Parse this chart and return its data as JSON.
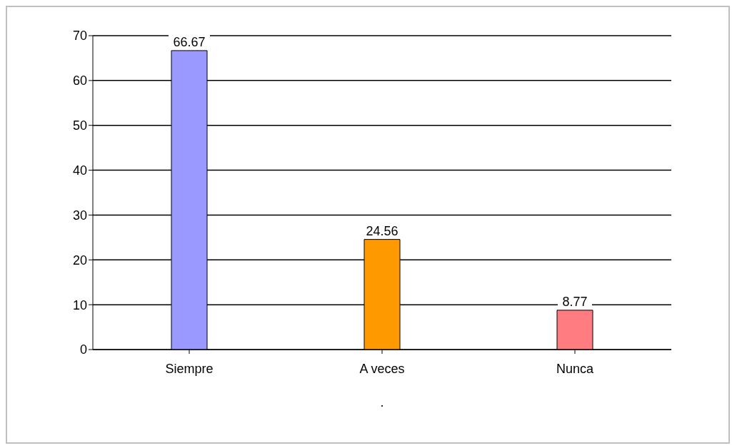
{
  "chart_data": {
    "type": "bar",
    "categories": [
      "Siempre",
      "A veces",
      "Nunca"
    ],
    "values": [
      66.67,
      24.56,
      8.77
    ],
    "colors": [
      "#9999ff",
      "#ff9900",
      "#ff7c80"
    ],
    "ylim": [
      0,
      70
    ],
    "yticks": [
      0,
      10,
      20,
      30,
      40,
      50,
      60,
      70
    ],
    "grid": "y",
    "data_labels": true,
    "xlabel": "."
  }
}
